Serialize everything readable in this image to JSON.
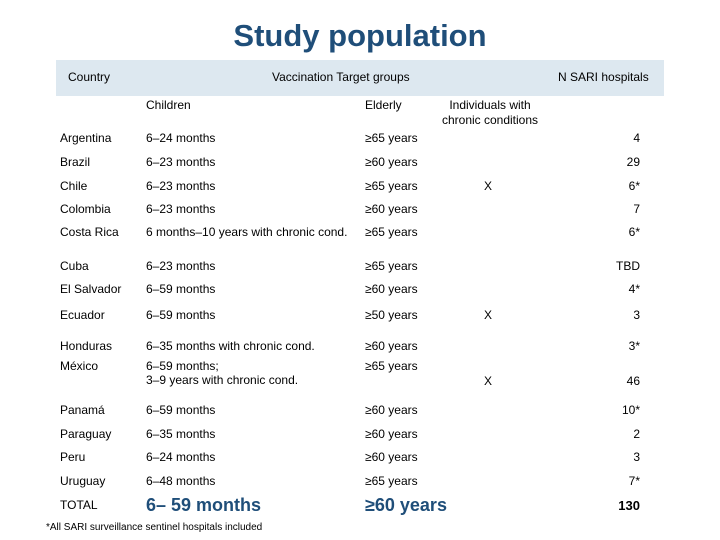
{
  "title": "Study population",
  "headers": {
    "country": "Country",
    "groups": "Vaccination Target groups",
    "hospitals": "N SARI hospitals",
    "children": "Children",
    "elderly": "Elderly",
    "chronic": "Individuals with chronic conditions"
  },
  "rows": [
    {
      "country": "Argentina",
      "children": "6–24 months",
      "elderly": "≥65 years",
      "chronic": "",
      "n": "4"
    },
    {
      "country": "Brazil",
      "children": "6–23 months",
      "elderly": "≥60 years",
      "chronic": "",
      "n": "29"
    },
    {
      "country": "Chile",
      "children": "6–23 months",
      "elderly": "≥65 years",
      "chronic": "X",
      "n": "6*"
    },
    {
      "country": "Colombia",
      "children": "6–23 months",
      "elderly": "≥60 years",
      "chronic": "",
      "n": "7"
    },
    {
      "country": "Costa Rica",
      "children": "6 months–10 years with chronic cond.",
      "elderly": "≥65 years",
      "chronic": "",
      "n": "6*"
    },
    {
      "country": "Cuba",
      "children": "6–23 months",
      "elderly": "≥65 years",
      "chronic": "",
      "n": "TBD"
    },
    {
      "country": "El Salvador",
      "children": "6–59 months",
      "elderly": "≥60  years",
      "chronic": "",
      "n": "4*"
    },
    {
      "country": "Ecuador",
      "children": "6–59 months",
      "elderly": "≥50 years",
      "chronic": "X",
      "n": "3"
    },
    {
      "country": "Honduras",
      "children": "6–35 months with chronic cond.",
      "elderly": "≥60 years",
      "chronic": "",
      "n": "3*"
    },
    {
      "country": "México",
      "children": "6–59 months;",
      "children2": "3–9 years with chronic cond.",
      "elderly": "≥65 years",
      "chronic": "X",
      "n": "46"
    },
    {
      "country": "Panamá",
      "children": "6–59 months",
      "elderly": "≥60 years",
      "chronic": "",
      "n": "10*"
    },
    {
      "country": "Paraguay",
      "children": "6–35 months",
      "elderly": "≥60 years",
      "chronic": "",
      "n": "2"
    },
    {
      "country": "Peru",
      "children": "6–24 months",
      "elderly": "≥60 years",
      "chronic": "",
      "n": "3"
    },
    {
      "country": "Uruguay",
      "children": "6–48 months",
      "elderly": "≥65 years",
      "chronic": "",
      "n": "7*"
    }
  ],
  "total": {
    "label": "TOTAL",
    "children": "6– 59 months",
    "elderly": "≥60 years",
    "n": "130"
  },
  "footnote": "*All SARI surveillance sentinel hospitals included"
}
